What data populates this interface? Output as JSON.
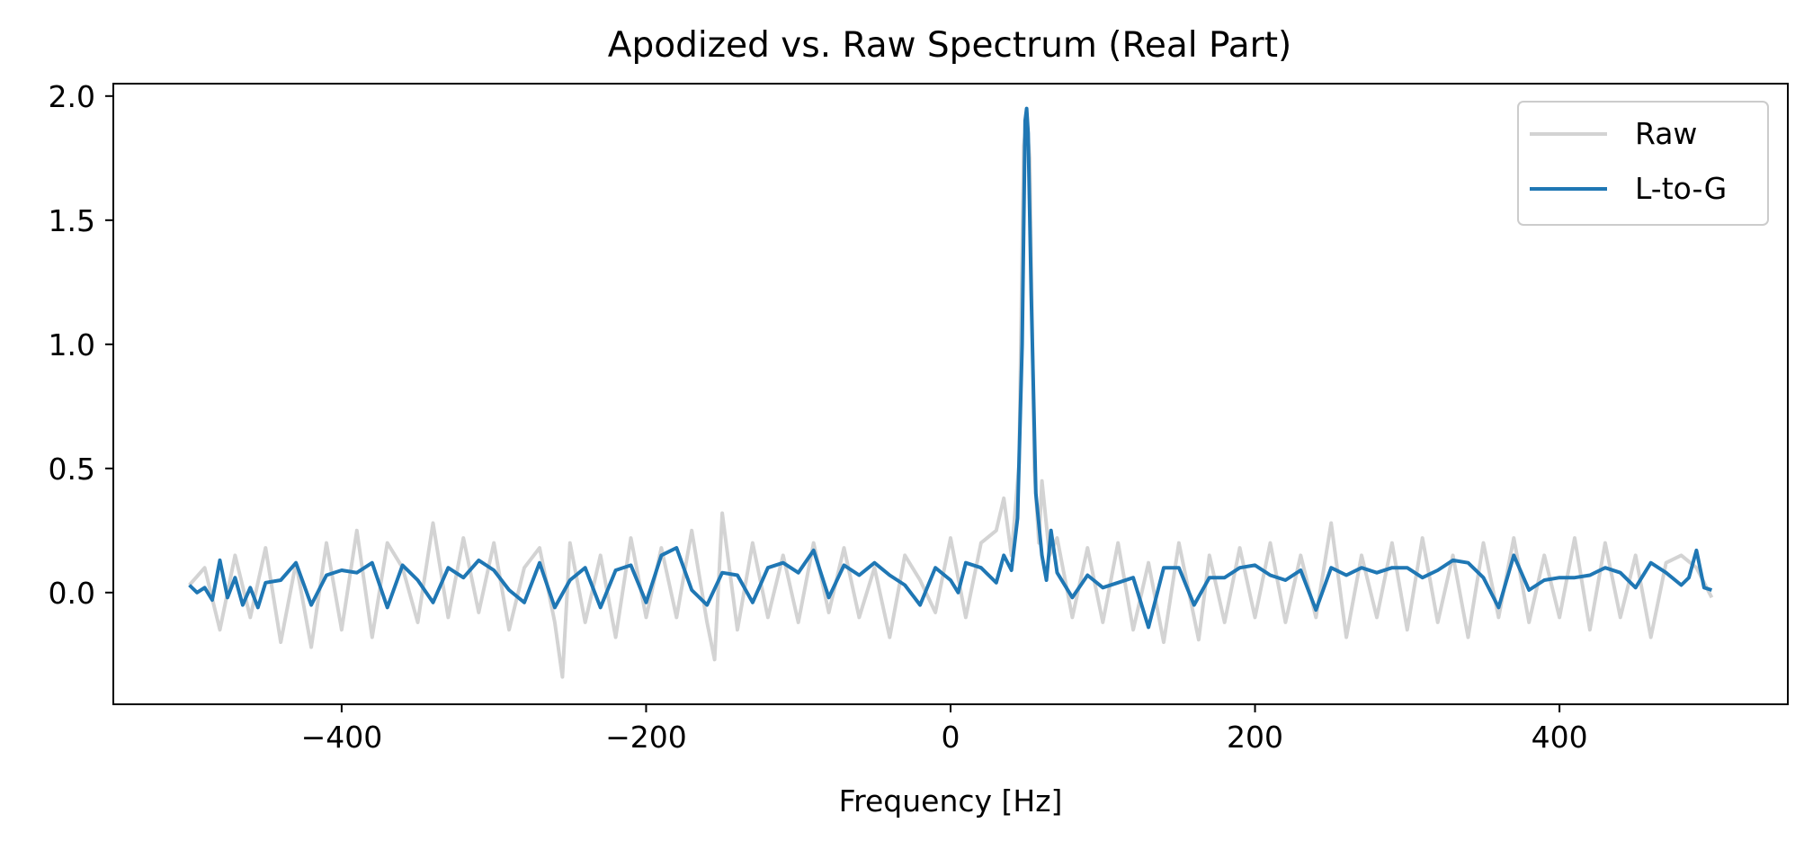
{
  "chart_data": {
    "type": "line",
    "title": "Apodized vs. Raw Spectrum (Real Part)",
    "xlabel": "Frequency [Hz]",
    "ylabel": "",
    "xlim": [
      -550,
      550
    ],
    "ylim": [
      -0.45,
      2.05
    ],
    "xticks": [
      -400,
      -200,
      0,
      200,
      400
    ],
    "xtick_labels": [
      "−400",
      "−200",
      "0",
      "200",
      "400"
    ],
    "yticks": [
      0.0,
      0.5,
      1.0,
      1.5,
      2.0
    ],
    "ytick_labels": [
      "0.0",
      "0.5",
      "1.0",
      "1.5",
      "2.0"
    ],
    "grid": false,
    "legend_position": "top-right",
    "series": [
      {
        "name": "Raw",
        "color": "#d3d3d3",
        "x": [
          -500,
          -490,
          -480,
          -470,
          -460,
          -450,
          -440,
          -430,
          -420,
          -410,
          -400,
          -390,
          -380,
          -370,
          -360,
          -350,
          -340,
          -330,
          -320,
          -310,
          -300,
          -290,
          -280,
          -270,
          -260,
          -255,
          -250,
          -240,
          -230,
          -220,
          -210,
          -200,
          -190,
          -180,
          -170,
          -160,
          -155,
          -150,
          -140,
          -130,
          -120,
          -110,
          -100,
          -90,
          -80,
          -70,
          -60,
          -50,
          -40,
          -30,
          -20,
          -10,
          0,
          10,
          20,
          30,
          35,
          40,
          45,
          48,
          50,
          52,
          55,
          58,
          60,
          65,
          70,
          80,
          90,
          100,
          110,
          120,
          130,
          140,
          150,
          160,
          163,
          170,
          180,
          190,
          200,
          210,
          220,
          230,
          240,
          250,
          260,
          270,
          280,
          290,
          300,
          310,
          320,
          330,
          340,
          350,
          360,
          370,
          380,
          390,
          400,
          410,
          420,
          430,
          440,
          450,
          460,
          470,
          480,
          490,
          500
        ],
        "y": [
          0.03,
          0.1,
          -0.15,
          0.15,
          -0.1,
          0.18,
          -0.2,
          0.12,
          -0.22,
          0.2,
          -0.15,
          0.25,
          -0.18,
          0.2,
          0.1,
          -0.12,
          0.28,
          -0.1,
          0.22,
          -0.08,
          0.2,
          -0.15,
          0.1,
          0.18,
          -0.12,
          -0.34,
          0.2,
          -0.12,
          0.15,
          -0.18,
          0.22,
          -0.1,
          0.18,
          -0.1,
          0.25,
          -0.12,
          -0.27,
          0.32,
          -0.15,
          0.2,
          -0.1,
          0.15,
          -0.12,
          0.2,
          -0.08,
          0.18,
          -0.1,
          0.1,
          -0.18,
          0.15,
          0.05,
          -0.08,
          0.22,
          -0.1,
          0.2,
          0.25,
          0.38,
          0.15,
          0.52,
          1.8,
          1.9,
          1.75,
          0.5,
          0.2,
          0.45,
          0.15,
          0.22,
          -0.1,
          0.18,
          -0.12,
          0.2,
          -0.15,
          0.12,
          -0.2,
          0.2,
          -0.1,
          -0.19,
          0.15,
          -0.12,
          0.18,
          -0.1,
          0.2,
          -0.12,
          0.15,
          -0.1,
          0.28,
          -0.18,
          0.15,
          -0.1,
          0.2,
          -0.15,
          0.22,
          -0.12,
          0.15,
          -0.18,
          0.2,
          -0.1,
          0.22,
          -0.12,
          0.15,
          -0.1,
          0.22,
          -0.15,
          0.2,
          -0.1,
          0.15,
          -0.18,
          0.12,
          0.15,
          0.1,
          -0.02
        ]
      },
      {
        "name": "L-to-G",
        "color": "#1f77b4",
        "x": [
          -500,
          -495,
          -490,
          -485,
          -480,
          -475,
          -470,
          -465,
          -460,
          -455,
          -450,
          -440,
          -430,
          -420,
          -410,
          -400,
          -390,
          -380,
          -370,
          -360,
          -350,
          -340,
          -330,
          -320,
          -310,
          -300,
          -290,
          -280,
          -270,
          -260,
          -250,
          -240,
          -230,
          -220,
          -210,
          -200,
          -190,
          -180,
          -170,
          -160,
          -150,
          -140,
          -130,
          -120,
          -110,
          -100,
          -90,
          -80,
          -70,
          -60,
          -50,
          -40,
          -30,
          -20,
          -10,
          0,
          5,
          10,
          20,
          30,
          35,
          40,
          44,
          47,
          49,
          50,
          51,
          53,
          56,
          60,
          63,
          66,
          70,
          80,
          90,
          100,
          110,
          120,
          130,
          140,
          150,
          160,
          170,
          180,
          190,
          200,
          210,
          220,
          230,
          240,
          250,
          260,
          270,
          280,
          290,
          300,
          310,
          320,
          330,
          340,
          350,
          360,
          370,
          380,
          390,
          400,
          410,
          420,
          430,
          440,
          450,
          460,
          470,
          480,
          485,
          490,
          495,
          500
        ],
        "y": [
          0.03,
          0.0,
          0.02,
          -0.03,
          0.13,
          -0.02,
          0.06,
          -0.05,
          0.02,
          -0.06,
          0.04,
          0.05,
          0.12,
          -0.05,
          0.07,
          0.09,
          0.08,
          0.12,
          -0.06,
          0.11,
          0.05,
          -0.04,
          0.1,
          0.06,
          0.13,
          0.09,
          0.01,
          -0.04,
          0.12,
          -0.06,
          0.05,
          0.1,
          -0.06,
          0.09,
          0.11,
          -0.04,
          0.15,
          0.18,
          0.01,
          -0.05,
          0.08,
          0.07,
          -0.04,
          0.1,
          0.12,
          0.08,
          0.17,
          -0.02,
          0.11,
          0.07,
          0.12,
          0.07,
          0.03,
          -0.05,
          0.1,
          0.05,
          0.0,
          0.12,
          0.1,
          0.04,
          0.15,
          0.09,
          0.3,
          1.0,
          1.9,
          1.95,
          1.85,
          1.2,
          0.4,
          0.15,
          0.05,
          0.25,
          0.08,
          -0.02,
          0.07,
          0.02,
          0.04,
          0.06,
          -0.14,
          0.1,
          0.1,
          -0.05,
          0.06,
          0.06,
          0.1,
          0.11,
          0.07,
          0.05,
          0.09,
          -0.07,
          0.1,
          0.07,
          0.1,
          0.08,
          0.1,
          0.1,
          0.06,
          0.09,
          0.13,
          0.12,
          0.06,
          -0.06,
          0.15,
          0.01,
          0.05,
          0.06,
          0.06,
          0.07,
          0.1,
          0.08,
          0.02,
          0.12,
          0.08,
          0.03,
          0.06,
          0.17,
          0.02,
          0.01
        ]
      }
    ]
  }
}
